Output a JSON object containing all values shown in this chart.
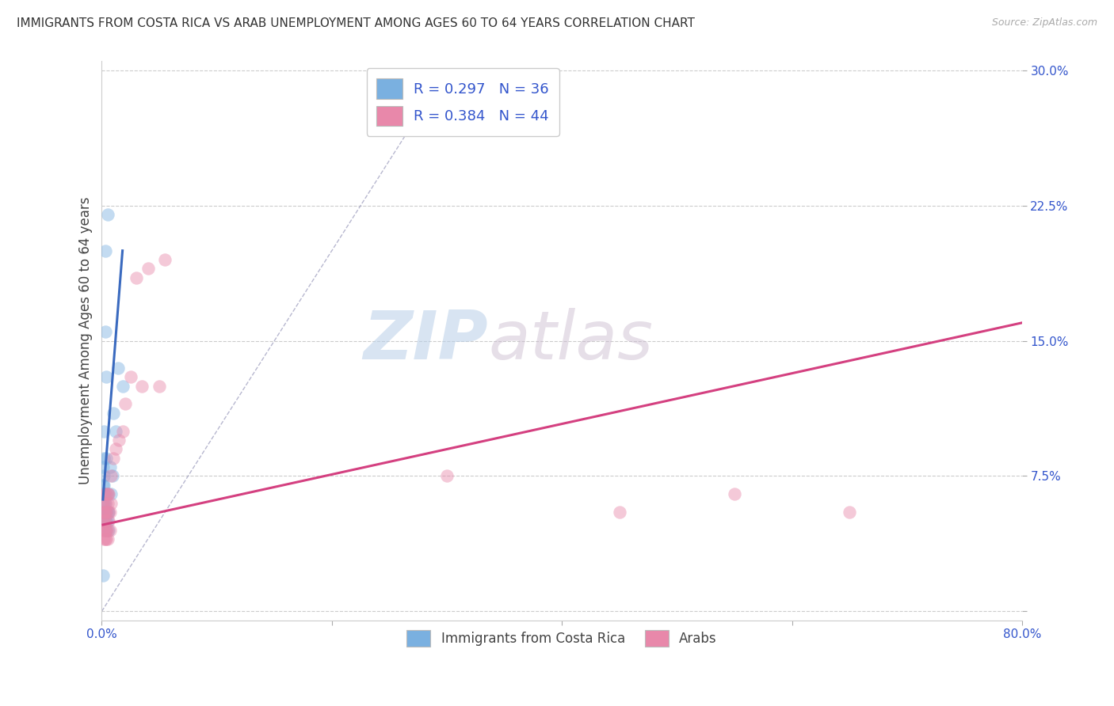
{
  "title": "IMMIGRANTS FROM COSTA RICA VS ARAB UNEMPLOYMENT AMONG AGES 60 TO 64 YEARS CORRELATION CHART",
  "source": "Source: ZipAtlas.com",
  "ylabel": "Unemployment Among Ages 60 to 64 years",
  "xlim": [
    0.0,
    0.8
  ],
  "ylim": [
    -0.005,
    0.305
  ],
  "xticks": [
    0.0,
    0.2,
    0.4,
    0.6,
    0.8
  ],
  "xtick_labels": [
    "0.0%",
    "",
    "",
    "",
    "80.0%"
  ],
  "yticks": [
    0.0,
    0.075,
    0.15,
    0.225,
    0.3
  ],
  "ytick_labels": [
    "",
    "7.5%",
    "15.0%",
    "22.5%",
    "30.0%"
  ],
  "background_color": "#ffffff",
  "watermark_zip": "ZIP",
  "watermark_atlas": "atlas",
  "legend_label1": "R = 0.297   N = 36",
  "legend_label2": "R = 0.384   N = 44",
  "blue_color": "#6fa8dc",
  "pink_color": "#e06090",
  "blue_scatter_color": "#7ab0e0",
  "pink_scatter_color": "#e888aa",
  "blue_line_color": "#3a6abf",
  "pink_line_color": "#d44080",
  "diag_line_color": "#9999bb",
  "costa_rica_x": [
    0.001,
    0.001,
    0.001,
    0.001,
    0.001,
    0.002,
    0.002,
    0.002,
    0.002,
    0.002,
    0.002,
    0.002,
    0.003,
    0.003,
    0.003,
    0.003,
    0.003,
    0.003,
    0.004,
    0.004,
    0.004,
    0.004,
    0.004,
    0.005,
    0.005,
    0.005,
    0.005,
    0.006,
    0.006,
    0.007,
    0.008,
    0.009,
    0.01,
    0.012,
    0.014,
    0.018
  ],
  "costa_rica_y": [
    0.055,
    0.065,
    0.07,
    0.08,
    0.02,
    0.055,
    0.06,
    0.065,
    0.07,
    0.075,
    0.085,
    0.1,
    0.05,
    0.055,
    0.06,
    0.065,
    0.155,
    0.2,
    0.045,
    0.05,
    0.055,
    0.085,
    0.13,
    0.05,
    0.055,
    0.065,
    0.22,
    0.045,
    0.055,
    0.08,
    0.065,
    0.075,
    0.11,
    0.1,
    0.135,
    0.125
  ],
  "arab_x": [
    0.001,
    0.001,
    0.001,
    0.001,
    0.002,
    0.002,
    0.002,
    0.002,
    0.002,
    0.003,
    0.003,
    0.003,
    0.003,
    0.003,
    0.004,
    0.004,
    0.004,
    0.004,
    0.005,
    0.005,
    0.005,
    0.005,
    0.006,
    0.006,
    0.006,
    0.007,
    0.007,
    0.008,
    0.008,
    0.01,
    0.012,
    0.015,
    0.018,
    0.02,
    0.025,
    0.03,
    0.035,
    0.04,
    0.05,
    0.055,
    0.3,
    0.45,
    0.55,
    0.65
  ],
  "arab_y": [
    0.045,
    0.05,
    0.055,
    0.06,
    0.04,
    0.045,
    0.05,
    0.055,
    0.065,
    0.04,
    0.045,
    0.05,
    0.055,
    0.06,
    0.04,
    0.045,
    0.055,
    0.065,
    0.04,
    0.045,
    0.06,
    0.065,
    0.05,
    0.055,
    0.065,
    0.045,
    0.055,
    0.06,
    0.075,
    0.085,
    0.09,
    0.095,
    0.1,
    0.115,
    0.13,
    0.185,
    0.125,
    0.19,
    0.125,
    0.195,
    0.075,
    0.055,
    0.065,
    0.055
  ],
  "blue_line_x": [
    0.001,
    0.018
  ],
  "blue_line_y": [
    0.062,
    0.2
  ],
  "pink_line_x": [
    0.001,
    0.8
  ],
  "pink_line_y": [
    0.048,
    0.16
  ],
  "diag_line_x": [
    0.0,
    0.3
  ],
  "diag_line_y": [
    0.0,
    0.3
  ],
  "bottom_legend_label1": "Immigrants from Costa Rica",
  "bottom_legend_label2": "Arabs"
}
